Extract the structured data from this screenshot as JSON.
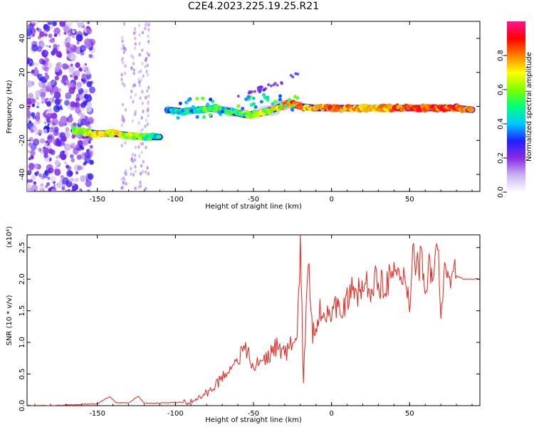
{
  "title": "C2E4.2023.225.19.25.R21",
  "chart_data": [
    {
      "type": "heatmap",
      "title": "C2E4.2023.225.19.25.R21",
      "xlabel": "Height of straight line (km)",
      "ylabel": "Frequency (Hz)",
      "xlim": [
        -195,
        95
      ],
      "ylim": [
        -50,
        50
      ],
      "xticks": [
        -150,
        -100,
        -50,
        0,
        50
      ],
      "yticks": [
        -40,
        -20,
        0,
        20,
        40
      ],
      "colorbar": {
        "label": "Normalized spectral amplitude",
        "range": [
          0.0,
          1.0
        ],
        "ticks": [
          "0.0",
          "0.2",
          "0.4",
          "0.6",
          "0.8"
        ],
        "colormap": [
          "#ffffff",
          "#c8b4f0",
          "#8a2be2",
          "#2020ff",
          "#00c8ff",
          "#00ff7f",
          "#7fff00",
          "#ffff00",
          "#ff8000",
          "#ff0000",
          "#ff1493"
        ]
      },
      "ridge": [
        {
          "x": -165,
          "f": -14,
          "amp": 0.55
        },
        {
          "x": -158,
          "f": -15,
          "amp": 0.62
        },
        {
          "x": -150,
          "f": -16,
          "amp": 0.75
        },
        {
          "x": -140,
          "f": -16,
          "amp": 0.7
        },
        {
          "x": -130,
          "f": -17,
          "amp": 0.65
        },
        {
          "x": -120,
          "f": -18,
          "amp": 0.55
        },
        {
          "x": -110,
          "f": -18,
          "amp": 0.45
        },
        {
          "x": -105,
          "f": -2,
          "amp": 0.35
        },
        {
          "x": -95,
          "f": -3,
          "amp": 0.45
        },
        {
          "x": -85,
          "f": -2,
          "amp": 0.5
        },
        {
          "x": -75,
          "f": -1,
          "amp": 0.55
        },
        {
          "x": -65,
          "f": -3,
          "amp": 0.5
        },
        {
          "x": -55,
          "f": -5,
          "amp": 0.55
        },
        {
          "x": -45,
          "f": -4,
          "amp": 0.6
        },
        {
          "x": -35,
          "f": -1,
          "amp": 0.7
        },
        {
          "x": -28,
          "f": 2,
          "amp": 0.85
        },
        {
          "x": -20,
          "f": 0,
          "amp": 0.8
        },
        {
          "x": -10,
          "f": -1,
          "amp": 0.75
        },
        {
          "x": 0,
          "f": -1,
          "amp": 0.85
        },
        {
          "x": 10,
          "f": -1,
          "amp": 0.8
        },
        {
          "x": 20,
          "f": -1,
          "amp": 0.75
        },
        {
          "x": 30,
          "f": -1,
          "amp": 0.75
        },
        {
          "x": 40,
          "f": -1,
          "amp": 0.8
        },
        {
          "x": 50,
          "f": -1,
          "amp": 0.85
        },
        {
          "x": 60,
          "f": -1,
          "amp": 0.85
        },
        {
          "x": 70,
          "f": -1,
          "amp": 0.85
        },
        {
          "x": 80,
          "f": -1,
          "amp": 0.85
        },
        {
          "x": 90,
          "f": -2,
          "amp": 0.8
        }
      ]
    },
    {
      "type": "line",
      "xlabel": "Height of straight line (km)",
      "ylabel": "SNR (10 * v/v)",
      "y_multiplier": "(x10⁴)",
      "xlim": [
        -195,
        95
      ],
      "ylim": [
        0,
        2.7
      ],
      "xticks": [
        -150,
        -100,
        -50,
        0,
        50
      ],
      "yticks": [
        "0.0",
        "0.5",
        "1.0",
        "1.5",
        "2.0",
        "2.5"
      ],
      "line_color": "#e8201a",
      "series": [
        {
          "x": [
            -195,
            -180,
            -160,
            -150,
            -142,
            -138,
            -130,
            -124,
            -120,
            -110,
            -100,
            -95,
            -90,
            -85,
            -80,
            -75,
            -70,
            -65,
            -60,
            -55,
            -50,
            -45,
            -40,
            -35,
            -30,
            -25,
            -22,
            -20,
            -18,
            -15,
            -12,
            -10,
            -8,
            -5,
            -2,
            0,
            3,
            5,
            8,
            10,
            13,
            15,
            18,
            20,
            25,
            30,
            35,
            40,
            45,
            48,
            50,
            52,
            55,
            58,
            60,
            63,
            65,
            68,
            70,
            73,
            75,
            78,
            80,
            85,
            90,
            95
          ],
          "y": [
            0.0,
            0.0,
            0.02,
            0.03,
            0.14,
            0.05,
            0.04,
            0.15,
            0.04,
            0.04,
            0.05,
            0.05,
            0.06,
            0.12,
            0.2,
            0.3,
            0.45,
            0.6,
            0.75,
            0.9,
            0.6,
            0.7,
            0.8,
            0.95,
            0.8,
            1.0,
            1.05,
            2.55,
            0.4,
            2.2,
            1.1,
            1.3,
            1.5,
            1.45,
            1.6,
            1.35,
            1.55,
            1.7,
            1.55,
            1.65,
            1.8,
            1.7,
            1.85,
            1.85,
            1.9,
            1.95,
            2.0,
            2.0,
            2.0,
            1.95,
            1.6,
            2.5,
            2.2,
            2.3,
            1.9,
            2.25,
            2.0,
            2.65,
            1.25,
            2.3,
            1.8,
            2.1,
            2.05,
            2.0,
            2.0,
            2.0
          ]
        }
      ]
    }
  ]
}
